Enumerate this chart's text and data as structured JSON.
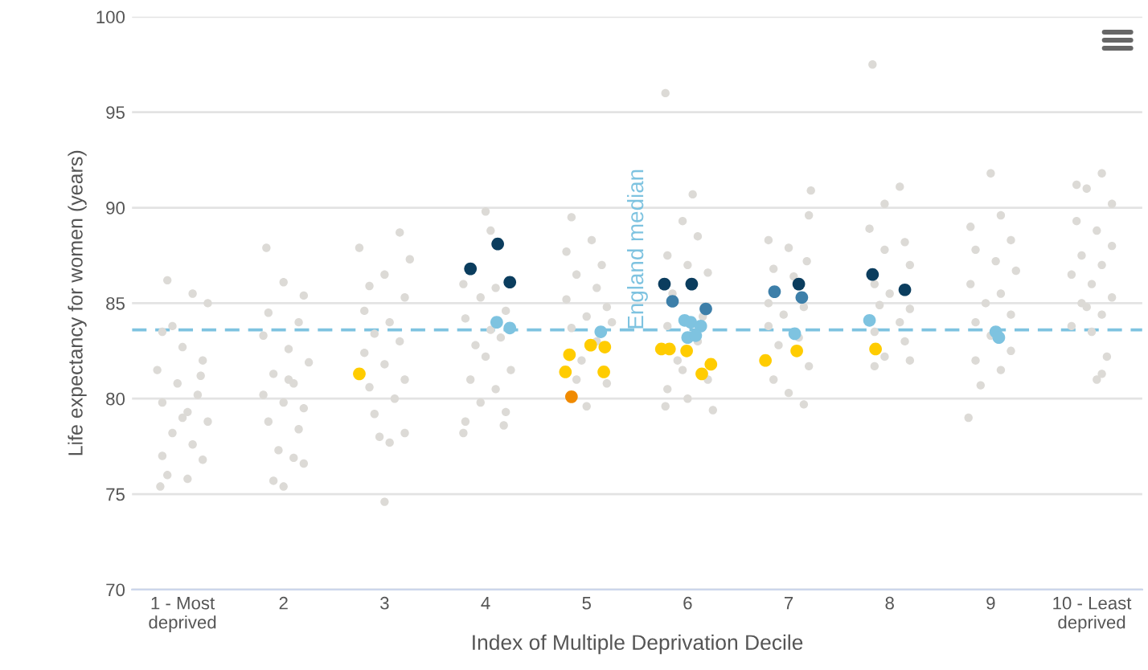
{
  "chart_data": {
    "type": "scatter",
    "xlabel": "Index of Multiple Deprivation Decile",
    "ylabel": "Life expectancy for women (years)",
    "xlim": [
      0.5,
      10.5
    ],
    "ylim": [
      70,
      100
    ],
    "yticks": [
      70,
      75,
      80,
      85,
      90,
      95,
      100
    ],
    "xticks": [
      {
        "value": 1,
        "label": "1 - Most\ndeprived"
      },
      2,
      3,
      4,
      5,
      6,
      7,
      8,
      9,
      {
        "value": 10,
        "label": "10 - Least\ndeprived"
      }
    ],
    "grid": "y",
    "legend": false,
    "marker": "circle",
    "ref_lines": [
      {
        "axis": "y",
        "value": 83.6,
        "label": "England median",
        "color": "#7ec3e0",
        "line_style": "dashed"
      }
    ],
    "series": [
      {
        "color": "#dcdad6",
        "x": [
          0.85,
          1.1,
          1.25,
          0.8,
          1.0,
          1.2,
          0.75,
          0.95,
          1.15,
          0.8,
          1.05,
          1.25,
          0.9,
          1.1,
          0.8,
          1.2,
          0.85,
          1.05,
          0.78,
          1.0,
          1.18,
          0.9,
          1.83,
          2.0,
          2.2,
          1.85,
          2.15,
          1.8,
          2.05,
          2.25,
          1.9,
          2.1,
          1.8,
          2.0,
          2.2,
          1.85,
          2.15,
          1.95,
          2.1,
          2.2,
          1.9,
          2.0,
          2.05,
          2.75,
          3.15,
          3.25,
          3.0,
          2.85,
          3.2,
          2.8,
          3.05,
          2.9,
          3.15,
          2.8,
          3.0,
          3.2,
          2.85,
          3.1,
          2.9,
          3.2,
          2.95,
          3.05,
          3.0,
          4.0,
          4.05,
          3.78,
          4.1,
          3.95,
          4.2,
          3.8,
          4.15,
          3.9,
          4.0,
          4.25,
          3.85,
          4.1,
          3.95,
          4.2,
          3.8,
          3.78,
          4.18,
          4.05,
          4.85,
          5.05,
          4.8,
          5.15,
          4.9,
          5.1,
          4.8,
          5.2,
          5.0,
          4.85,
          5.1,
          4.95,
          5.2,
          4.9,
          5.0,
          5.25,
          5.78,
          6.05,
          5.95,
          6.1,
          5.8,
          6.0,
          6.2,
          5.85,
          6.15,
          5.8,
          6.1,
          5.9,
          6.2,
          5.8,
          6.0,
          6.25,
          5.78,
          5.95,
          7.22,
          7.2,
          6.8,
          7.0,
          7.18,
          6.85,
          7.05,
          6.8,
          7.15,
          6.95,
          6.8,
          7.1,
          6.9,
          7.2,
          6.85,
          7.0,
          7.15,
          7.83,
          8.1,
          7.95,
          7.8,
          8.15,
          7.95,
          8.2,
          7.85,
          8.0,
          8.2,
          7.9,
          8.1,
          7.85,
          8.15,
          7.95,
          8.2,
          7.85,
          9.0,
          8.8,
          9.1,
          9.2,
          8.85,
          9.05,
          9.25,
          8.8,
          9.1,
          8.95,
          9.2,
          8.85,
          9.0,
          9.2,
          8.85,
          9.1,
          8.9,
          8.78,
          9.85,
          10.1,
          9.95,
          10.2,
          9.85,
          10.05,
          10.2,
          9.9,
          10.1,
          9.8,
          10.0,
          10.2,
          9.9,
          10.1,
          9.8,
          10.0,
          10.15,
          10.05,
          10.1,
          9.95
        ],
        "values": [
          86.2,
          85.5,
          85.0,
          83.5,
          82.7,
          82.0,
          81.5,
          80.8,
          80.2,
          79.8,
          79.3,
          78.8,
          78.2,
          77.6,
          77.0,
          76.8,
          76.0,
          75.8,
          75.4,
          79.0,
          81.2,
          83.8,
          87.9,
          86.1,
          85.4,
          84.5,
          84.0,
          83.3,
          82.6,
          81.9,
          81.3,
          80.8,
          80.2,
          79.8,
          79.5,
          78.8,
          78.4,
          77.3,
          76.9,
          76.6,
          75.7,
          75.4,
          81.0,
          87.9,
          88.7,
          87.3,
          86.5,
          85.9,
          85.3,
          84.6,
          84.0,
          83.4,
          83.0,
          82.4,
          81.8,
          81.0,
          80.6,
          80.0,
          79.2,
          78.2,
          78.0,
          77.7,
          74.6,
          89.8,
          88.8,
          86.0,
          85.8,
          85.3,
          84.6,
          84.2,
          83.2,
          82.8,
          82.2,
          81.5,
          81.0,
          80.5,
          79.8,
          79.3,
          78.8,
          78.2,
          78.6,
          83.6,
          89.5,
          88.3,
          87.7,
          87.0,
          86.5,
          85.8,
          85.2,
          84.8,
          84.3,
          83.7,
          83.0,
          82.0,
          80.8,
          81.0,
          79.6,
          84.0,
          96.0,
          90.7,
          89.3,
          88.5,
          87.5,
          87.0,
          86.6,
          85.5,
          84.3,
          83.8,
          83.0,
          82.0,
          81.0,
          80.5,
          80.0,
          79.4,
          79.6,
          81.5,
          90.9,
          89.6,
          88.3,
          87.9,
          87.2,
          86.8,
          86.4,
          85.0,
          84.8,
          84.4,
          83.8,
          83.2,
          82.8,
          81.7,
          81.0,
          80.3,
          79.7,
          97.5,
          91.1,
          90.2,
          88.9,
          88.2,
          87.8,
          87.0,
          86.0,
          85.5,
          84.7,
          84.9,
          84.0,
          83.5,
          83.0,
          82.2,
          82.0,
          81.7,
          91.8,
          89.0,
          89.6,
          88.3,
          87.8,
          87.2,
          86.7,
          86.0,
          85.5,
          85.0,
          84.4,
          84.0,
          83.3,
          82.5,
          82.0,
          81.5,
          80.7,
          79.0,
          91.2,
          91.8,
          91.0,
          90.2,
          89.3,
          88.8,
          88.0,
          87.5,
          87.0,
          86.5,
          86.0,
          85.3,
          85.0,
          84.4,
          83.8,
          83.5,
          82.2,
          81.0,
          81.3,
          84.8
        ]
      },
      {
        "color": "#0b3d5e",
        "x": [
          3.85,
          4.12,
          4.24,
          5.77,
          6.04,
          7.1,
          7.83,
          8.15
        ],
        "values": [
          86.8,
          88.1,
          86.1,
          86.0,
          86.0,
          86.0,
          86.5,
          85.7
        ]
      },
      {
        "color": "#3d7fa9",
        "x": [
          5.85,
          6.18,
          6.86,
          7.13
        ],
        "values": [
          85.1,
          84.7,
          85.6,
          85.3
        ]
      },
      {
        "color": "#7ec3e0",
        "x": [
          4.11,
          4.24,
          5.14,
          5.97,
          6.03,
          6.13,
          6.0,
          6.08,
          7.06,
          7.8,
          9.05,
          9.08
        ],
        "values": [
          84.0,
          83.7,
          83.5,
          84.1,
          84.0,
          83.8,
          83.2,
          83.3,
          83.4,
          84.1,
          83.5,
          83.2
        ]
      },
      {
        "color": "#ffcc00",
        "x": [
          2.75,
          4.83,
          5.04,
          5.18,
          4.79,
          5.17,
          5.74,
          5.82,
          5.99,
          6.23,
          6.14,
          6.77,
          7.08,
          7.86
        ],
        "values": [
          81.3,
          82.3,
          82.8,
          82.7,
          81.4,
          81.4,
          82.6,
          82.6,
          82.5,
          81.8,
          81.3,
          82.0,
          82.5,
          82.6
        ]
      },
      {
        "color": "#f08a00",
        "x": [
          4.85
        ],
        "values": [
          80.1
        ]
      }
    ]
  }
}
